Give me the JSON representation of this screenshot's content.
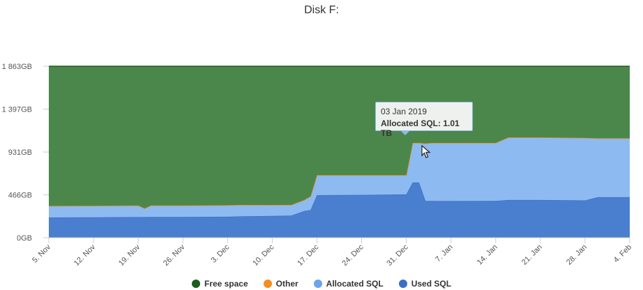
{
  "chart_data": {
    "type": "area",
    "stacked": true,
    "title": "Disk F:",
    "xlabel": "",
    "ylabel": "",
    "ylim": [
      0,
      1863
    ],
    "y_ticks": [
      "0GB",
      "466GB",
      "931GB",
      "1 397GB",
      "1 863GB"
    ],
    "y_tick_values": [
      0,
      466,
      931,
      1397,
      1863
    ],
    "x_tick_labels": [
      "5. Nov",
      "12. Nov",
      "19. Nov",
      "26. Nov",
      "3. Dec",
      "10. Dec",
      "17. Dec",
      "24. Dec",
      "31. Dec",
      "7. Jan",
      "14. Jan",
      "21. Jan",
      "28. Jan",
      "4. Feb"
    ],
    "x_tick_days": [
      0,
      7,
      14,
      21,
      28,
      35,
      42,
      49,
      56,
      63,
      70,
      77,
      84,
      91
    ],
    "x_day": [
      0,
      7,
      14,
      15,
      16,
      21,
      28,
      30,
      35,
      38,
      40,
      41,
      42,
      49,
      56,
      57,
      58,
      59,
      60,
      61,
      63,
      70,
      72,
      77,
      84,
      86,
      91
    ],
    "grid": "horizontal",
    "legend_position": "bottom-center",
    "series": [
      {
        "name": "Used SQL",
        "color": "#4a7fd0",
        "values": [
          220,
          222,
          224,
          224,
          226,
          226,
          228,
          232,
          236,
          240,
          290,
          300,
          462,
          465,
          470,
          600,
          600,
          400,
          400,
          398,
          398,
          400,
          410,
          410,
          405,
          440,
          440
        ]
      },
      {
        "name": "Allocated SQL",
        "color": "#8dbaf0",
        "values": [
          125,
          125,
          127,
          95,
          125,
          125,
          125,
          125,
          120,
          117,
          120,
          150,
          218,
          215,
          210,
          430,
          430,
          625,
          630,
          632,
          632,
          630,
          680,
          680,
          680,
          640,
          640
        ]
      },
      {
        "name": "Other",
        "color": "#f28f1e",
        "values": [
          0,
          0,
          0,
          0,
          0,
          0,
          0,
          0,
          0,
          0,
          0,
          0,
          0,
          0,
          0,
          0,
          0,
          0,
          0,
          0,
          0,
          0,
          0,
          0,
          0,
          0,
          0
        ]
      },
      {
        "name": "Free space",
        "color": "#4b874b",
        "values": [
          1518,
          1516,
          1512,
          1544,
          1512,
          1512,
          1510,
          1506,
          1507,
          1506,
          1453,
          1413,
          1183,
          1183,
          1183,
          833,
          833,
          838,
          833,
          833,
          833,
          833,
          773,
          773,
          778,
          783,
          783
        ]
      }
    ],
    "legend_order": [
      "Free space",
      "Other",
      "Allocated SQL",
      "Used SQL"
    ],
    "tooltip": {
      "date": "03 Jan 2019",
      "label": "Allocated SQL: 1.01 TB"
    }
  }
}
